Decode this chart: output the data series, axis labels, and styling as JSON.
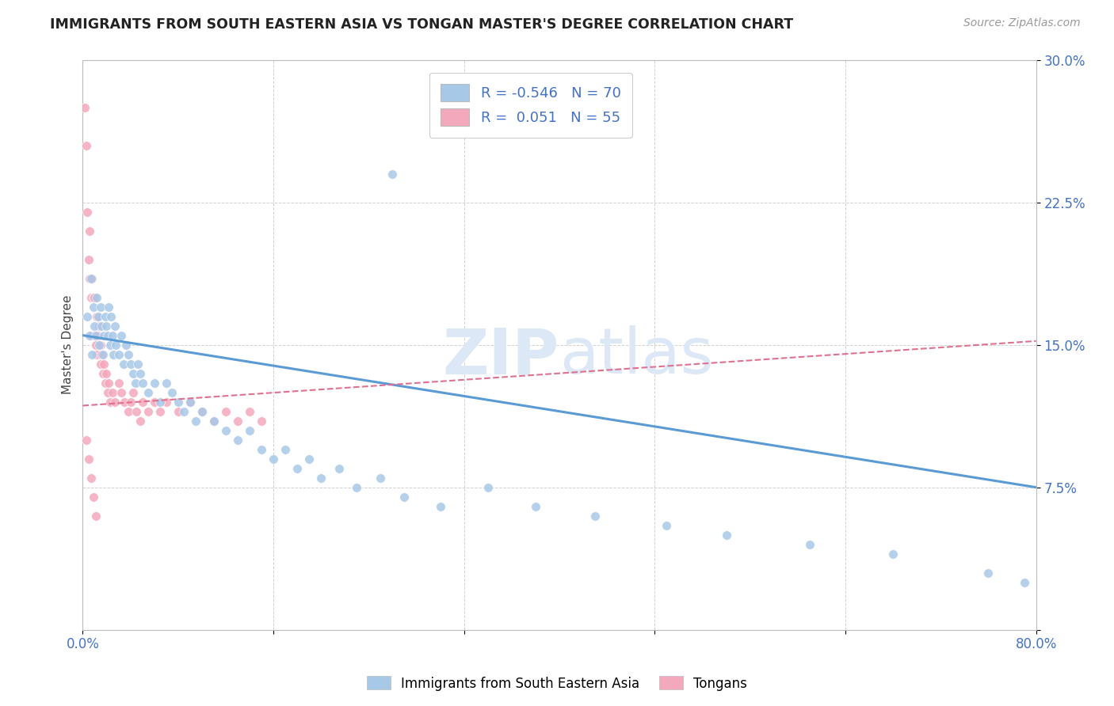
{
  "title": "IMMIGRANTS FROM SOUTH EASTERN ASIA VS TONGAN MASTER'S DEGREE CORRELATION CHART",
  "source": "Source: ZipAtlas.com",
  "ylabel_label": "Master's Degree",
  "legend_label1": "Immigrants from South Eastern Asia",
  "legend_label2": "Tongans",
  "R1": -0.546,
  "N1": 70,
  "R2": 0.051,
  "N2": 55,
  "xlim": [
    0.0,
    0.8
  ],
  "ylim": [
    0.0,
    0.3
  ],
  "xticks": [
    0.0,
    0.16,
    0.32,
    0.48,
    0.64,
    0.8
  ],
  "yticks": [
    0.0,
    0.075,
    0.15,
    0.225,
    0.3
  ],
  "xticklabels": [
    "0.0%",
    "",
    "",
    "",
    "",
    "80.0%"
  ],
  "yticklabels": [
    "",
    "7.5%",
    "15.0%",
    "22.5%",
    "30.0%"
  ],
  "color_blue": "#a8c8e8",
  "color_pink": "#f4a8bc",
  "color_blue_text": "#4472c4",
  "color_line_blue": "#5b9bd5",
  "color_line_pink": "#e07090",
  "watermark_color": "#dce8f5",
  "background_color": "#ffffff",
  "grid_color": "#cccccc",
  "blue_scatter_x": [
    0.004,
    0.006,
    0.007,
    0.008,
    0.009,
    0.01,
    0.011,
    0.012,
    0.013,
    0.014,
    0.015,
    0.016,
    0.017,
    0.018,
    0.019,
    0.02,
    0.021,
    0.022,
    0.023,
    0.024,
    0.025,
    0.026,
    0.027,
    0.028,
    0.03,
    0.032,
    0.034,
    0.036,
    0.038,
    0.04,
    0.042,
    0.044,
    0.046,
    0.048,
    0.05,
    0.055,
    0.06,
    0.065,
    0.07,
    0.075,
    0.08,
    0.085,
    0.09,
    0.095,
    0.1,
    0.11,
    0.12,
    0.13,
    0.14,
    0.15,
    0.16,
    0.17,
    0.18,
    0.19,
    0.2,
    0.215,
    0.23,
    0.25,
    0.27,
    0.3,
    0.26,
    0.34,
    0.38,
    0.43,
    0.49,
    0.54,
    0.61,
    0.68,
    0.76,
    0.79
  ],
  "blue_scatter_y": [
    0.165,
    0.155,
    0.185,
    0.145,
    0.17,
    0.16,
    0.155,
    0.175,
    0.165,
    0.15,
    0.17,
    0.16,
    0.145,
    0.155,
    0.165,
    0.16,
    0.155,
    0.17,
    0.15,
    0.165,
    0.155,
    0.145,
    0.16,
    0.15,
    0.145,
    0.155,
    0.14,
    0.15,
    0.145,
    0.14,
    0.135,
    0.13,
    0.14,
    0.135,
    0.13,
    0.125,
    0.13,
    0.12,
    0.13,
    0.125,
    0.12,
    0.115,
    0.12,
    0.11,
    0.115,
    0.11,
    0.105,
    0.1,
    0.105,
    0.095,
    0.09,
    0.095,
    0.085,
    0.09,
    0.08,
    0.085,
    0.075,
    0.08,
    0.07,
    0.065,
    0.24,
    0.075,
    0.065,
    0.06,
    0.055,
    0.05,
    0.045,
    0.04,
    0.03,
    0.025
  ],
  "pink_scatter_x": [
    0.002,
    0.003,
    0.004,
    0.005,
    0.006,
    0.006,
    0.007,
    0.008,
    0.008,
    0.009,
    0.01,
    0.01,
    0.011,
    0.012,
    0.012,
    0.013,
    0.014,
    0.015,
    0.015,
    0.016,
    0.017,
    0.018,
    0.019,
    0.02,
    0.021,
    0.022,
    0.023,
    0.025,
    0.027,
    0.03,
    0.032,
    0.035,
    0.038,
    0.04,
    0.042,
    0.045,
    0.048,
    0.05,
    0.055,
    0.06,
    0.065,
    0.07,
    0.08,
    0.09,
    0.1,
    0.11,
    0.12,
    0.13,
    0.14,
    0.15,
    0.003,
    0.005,
    0.007,
    0.009,
    0.011
  ],
  "pink_scatter_y": [
    0.275,
    0.255,
    0.22,
    0.195,
    0.185,
    0.21,
    0.175,
    0.185,
    0.155,
    0.175,
    0.155,
    0.175,
    0.15,
    0.165,
    0.145,
    0.155,
    0.16,
    0.15,
    0.14,
    0.145,
    0.135,
    0.14,
    0.13,
    0.135,
    0.125,
    0.13,
    0.12,
    0.125,
    0.12,
    0.13,
    0.125,
    0.12,
    0.115,
    0.12,
    0.125,
    0.115,
    0.11,
    0.12,
    0.115,
    0.12,
    0.115,
    0.12,
    0.115,
    0.12,
    0.115,
    0.11,
    0.115,
    0.11,
    0.115,
    0.11,
    0.1,
    0.09,
    0.08,
    0.07,
    0.06
  ],
  "blue_line_x": [
    0.0,
    0.8
  ],
  "blue_line_y_start": 0.155,
  "blue_line_y_end": 0.075,
  "pink_line_x": [
    0.0,
    0.8
  ],
  "pink_line_y_start": 0.118,
  "pink_line_y_end": 0.152
}
